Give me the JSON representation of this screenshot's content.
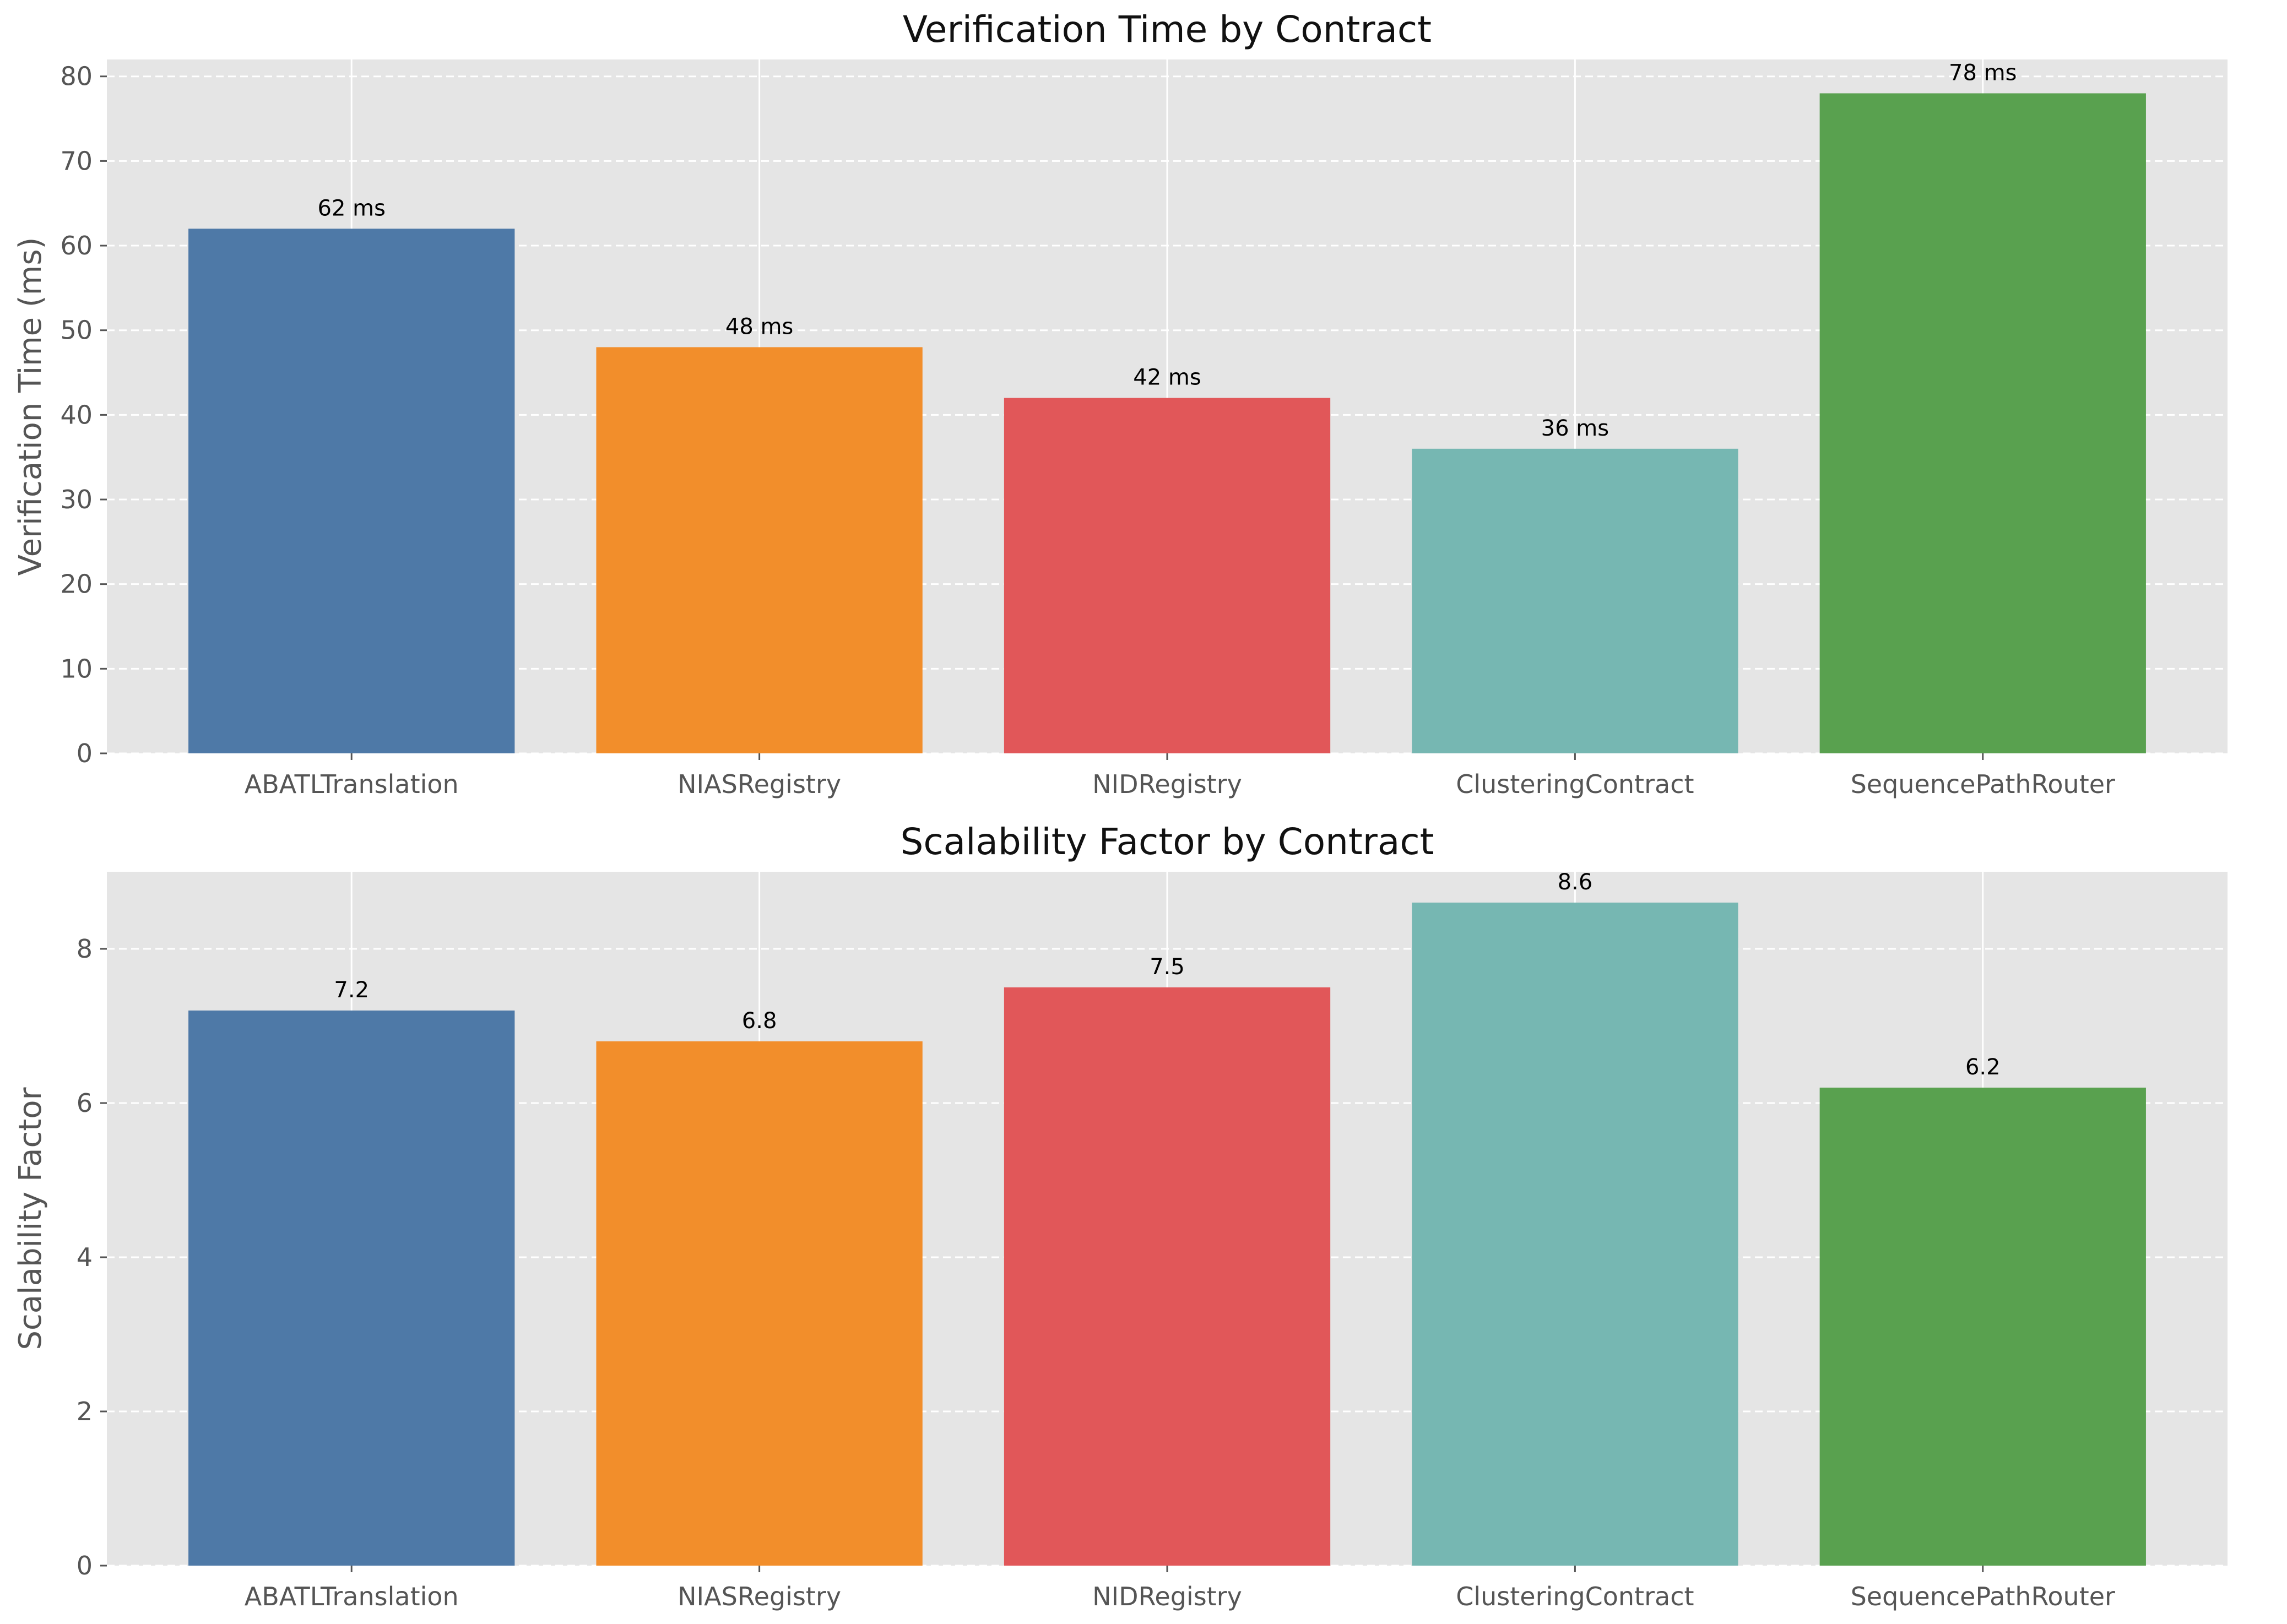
{
  "chart_data": [
    {
      "type": "bar",
      "title": "Verification Time by Contract",
      "xlabel": "",
      "ylabel": "Verification Time (ms)",
      "categories": [
        "ABATLTranslation",
        "NIASRegistry",
        "NIDRegistry",
        "ClusteringContract",
        "SequencePathRouter"
      ],
      "values": [
        62,
        48,
        42,
        36,
        78
      ],
      "value_labels": [
        "62 ms",
        "48 ms",
        "42 ms",
        "36 ms",
        "78 ms"
      ],
      "colors": [
        "#4e79a7",
        "#f28e2b",
        "#e15759",
        "#76b7b2",
        "#59a14f"
      ],
      "ylim": [
        0,
        82
      ],
      "yticks": [
        0,
        10,
        20,
        30,
        40,
        50,
        60,
        70,
        80
      ],
      "ytick_labels": [
        "0",
        "10",
        "20",
        "30",
        "40",
        "50",
        "60",
        "70",
        "80"
      ],
      "grid": true,
      "background": "#e5e5e5"
    },
    {
      "type": "bar",
      "title": "Scalability Factor by Contract",
      "xlabel": "",
      "ylabel": "Scalability Factor",
      "categories": [
        "ABATLTranslation",
        "NIASRegistry",
        "NIDRegistry",
        "ClusteringContract",
        "SequencePathRouter"
      ],
      "values": [
        7.2,
        6.8,
        7.5,
        8.6,
        6.2
      ],
      "value_labels": [
        "7.2",
        "6.8",
        "7.5",
        "8.6",
        "6.2"
      ],
      "colors": [
        "#4e79a7",
        "#f28e2b",
        "#e15759",
        "#76b7b2",
        "#59a14f"
      ],
      "ylim": [
        0,
        9.0
      ],
      "yticks": [
        0,
        2,
        4,
        6,
        8
      ],
      "ytick_labels": [
        "0",
        "2",
        "4",
        "6",
        "8"
      ],
      "grid": true,
      "background": "#e5e5e5"
    }
  ]
}
